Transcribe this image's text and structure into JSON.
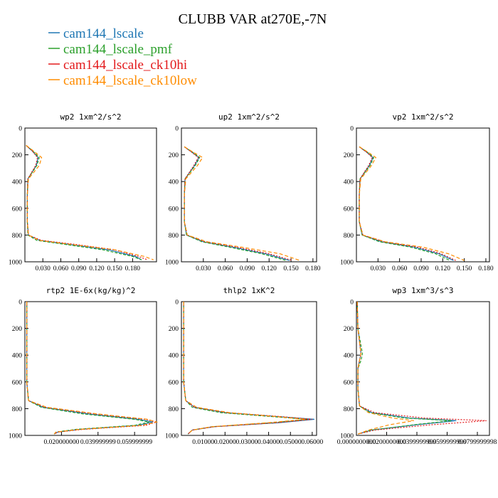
{
  "title": "CLUBB VAR at270E,-7N",
  "legend": [
    {
      "name": "cam144_lscale",
      "color": "#1f77b4"
    },
    {
      "name": "cam144_lscale_pmf",
      "color": "#2ca02c"
    },
    {
      "name": "cam144_lscale_ck10hi",
      "color": "#e31a1c"
    },
    {
      "name": "cam144_lscale_ck10low",
      "color": "#ff8c00"
    }
  ],
  "chart_data": [
    {
      "type": "line",
      "title": "wp2 1xm^2/s^2",
      "xlim": [
        0,
        0.22
      ],
      "ylim": [
        1000,
        0
      ],
      "y_inverted": true,
      "xticks": [
        0.03,
        0.06,
        0.09,
        0.12,
        0.15,
        0.18
      ],
      "xtick_labels": [
        "0.030",
        "0.060",
        "0.090",
        "0.120",
        "0.150",
        "0.180"
      ],
      "yticks": [
        0,
        200,
        400,
        600,
        800,
        1000
      ],
      "ytick_labels": [
        "0",
        "200",
        "400",
        "600",
        "800",
        "1000"
      ],
      "series": [
        {
          "name": "cam144_lscale",
          "x": [
            0.002,
            0.012,
            0.022,
            0.019,
            0.005,
            0.004,
            0.004,
            0.006,
            0.025,
            0.075,
            0.14,
            0.185,
            0.195
          ],
          "y": [
            130,
            170,
            220,
            280,
            380,
            500,
            700,
            800,
            840,
            870,
            910,
            960,
            985
          ]
        },
        {
          "name": "cam144_lscale_pmf",
          "x": [
            0.002,
            0.013,
            0.024,
            0.02,
            0.005,
            0.004,
            0.004,
            0.005,
            0.02,
            0.068,
            0.13,
            0.18,
            0.195
          ],
          "y": [
            130,
            170,
            220,
            280,
            380,
            500,
            700,
            800,
            840,
            870,
            910,
            960,
            985
          ]
        },
        {
          "name": "cam144_lscale_ck10hi",
          "x": [
            0.002,
            0.012,
            0.021,
            0.018,
            0.005,
            0.004,
            0.004,
            0.006,
            0.028,
            0.085,
            0.15,
            0.19,
            0.205
          ],
          "y": [
            130,
            170,
            220,
            280,
            380,
            500,
            700,
            800,
            840,
            870,
            910,
            960,
            985
          ]
        },
        {
          "name": "cam144_lscale_ck10low",
          "x": [
            0.002,
            0.014,
            0.028,
            0.024,
            0.006,
            0.004,
            0.004,
            0.006,
            0.024,
            0.078,
            0.15,
            0.2,
            0.215
          ],
          "y": [
            130,
            170,
            220,
            280,
            380,
            500,
            700,
            800,
            840,
            870,
            910,
            960,
            985
          ]
        }
      ]
    },
    {
      "type": "line",
      "title": "up2 1xm^2/s^2",
      "xlim": [
        0,
        0.185
      ],
      "ylim": [
        1000,
        0
      ],
      "y_inverted": true,
      "xticks": [
        0.03,
        0.06,
        0.09,
        0.12,
        0.15,
        0.18
      ],
      "xtick_labels": [
        "0.030",
        "0.060",
        "0.090",
        "0.120",
        "0.150",
        "0.180"
      ],
      "yticks": [
        0,
        200,
        400,
        600,
        800,
        1000
      ],
      "ytick_labels": [
        "0",
        "200",
        "400",
        "600",
        "800",
        "1000"
      ],
      "series": [
        {
          "name": "cam144_lscale",
          "x": [
            0.004,
            0.014,
            0.024,
            0.018,
            0.005,
            0.004,
            0.004,
            0.007,
            0.03,
            0.07,
            0.115,
            0.148
          ],
          "y": [
            140,
            180,
            220,
            280,
            380,
            500,
            700,
            800,
            850,
            890,
            940,
            990
          ]
        },
        {
          "name": "cam144_lscale_pmf",
          "x": [
            0.004,
            0.015,
            0.025,
            0.019,
            0.005,
            0.004,
            0.004,
            0.007,
            0.028,
            0.065,
            0.11,
            0.143
          ],
          "y": [
            140,
            180,
            220,
            280,
            380,
            500,
            700,
            800,
            850,
            890,
            940,
            990
          ]
        },
        {
          "name": "cam144_lscale_ck10hi",
          "x": [
            0.004,
            0.014,
            0.023,
            0.017,
            0.005,
            0.004,
            0.004,
            0.008,
            0.032,
            0.075,
            0.12,
            0.152
          ],
          "y": [
            140,
            180,
            220,
            280,
            380,
            500,
            700,
            800,
            850,
            890,
            940,
            990
          ]
        },
        {
          "name": "cam144_lscale_ck10low",
          "x": [
            0.004,
            0.016,
            0.029,
            0.022,
            0.006,
            0.004,
            0.004,
            0.008,
            0.035,
            0.082,
            0.135,
            0.162
          ],
          "y": [
            140,
            180,
            220,
            280,
            380,
            500,
            700,
            800,
            850,
            890,
            940,
            990
          ]
        }
      ]
    },
    {
      "type": "line",
      "title": "vp2 1xm^2/s^2",
      "xlim": [
        0,
        0.185
      ],
      "ylim": [
        1000,
        0
      ],
      "y_inverted": true,
      "xticks": [
        0.03,
        0.06,
        0.09,
        0.12,
        0.15,
        0.18
      ],
      "xtick_labels": [
        "0.030",
        "0.060",
        "0.090",
        "0.120",
        "0.150",
        "0.180"
      ],
      "yticks": [
        0,
        200,
        400,
        600,
        800,
        1000
      ],
      "ytick_labels": [
        "0",
        "200",
        "400",
        "600",
        "800",
        "1000"
      ],
      "series": [
        {
          "name": "cam144_lscale",
          "x": [
            0.004,
            0.014,
            0.023,
            0.018,
            0.005,
            0.004,
            0.004,
            0.008,
            0.035,
            0.08,
            0.115,
            0.135
          ],
          "y": [
            140,
            180,
            220,
            280,
            380,
            500,
            700,
            800,
            850,
            890,
            940,
            990
          ]
        },
        {
          "name": "cam144_lscale_pmf",
          "x": [
            0.004,
            0.015,
            0.024,
            0.019,
            0.005,
            0.004,
            0.004,
            0.008,
            0.032,
            0.075,
            0.11,
            0.13
          ],
          "y": [
            140,
            180,
            220,
            280,
            380,
            500,
            700,
            800,
            850,
            890,
            940,
            990
          ]
        },
        {
          "name": "cam144_lscale_ck10hi",
          "x": [
            0.004,
            0.014,
            0.022,
            0.017,
            0.005,
            0.004,
            0.004,
            0.009,
            0.038,
            0.085,
            0.118,
            0.138
          ],
          "y": [
            140,
            180,
            220,
            280,
            380,
            500,
            700,
            800,
            850,
            890,
            940,
            990
          ]
        },
        {
          "name": "cam144_lscale_ck10low",
          "x": [
            0.004,
            0.016,
            0.027,
            0.021,
            0.006,
            0.004,
            0.004,
            0.009,
            0.04,
            0.092,
            0.128,
            0.15
          ],
          "y": [
            140,
            180,
            220,
            280,
            380,
            500,
            700,
            800,
            850,
            890,
            940,
            990
          ]
        }
      ]
    },
    {
      "type": "line",
      "title": "rtp2 1E-6x(kg/kg)^2",
      "xlim": [
        0,
        0.072
      ],
      "ylim": [
        1000,
        0
      ],
      "y_inverted": true,
      "xticks": [
        0.02,
        0.04,
        0.06
      ],
      "xtick_labels": [
        "0.020000000",
        "0.039999999",
        "0.059999999"
      ],
      "yticks": [
        0,
        200,
        400,
        600,
        800,
        1000
      ],
      "ytick_labels": [
        "0",
        "200",
        "400",
        "600",
        "800",
        "1000"
      ],
      "series": [
        {
          "name": "cam144_lscale",
          "x": [
            0.001,
            0.001,
            0.001,
            0.002,
            0.01,
            0.035,
            0.062,
            0.07,
            0.062,
            0.03,
            0.018,
            0.016
          ],
          "y": [
            0,
            300,
            600,
            740,
            790,
            840,
            880,
            900,
            925,
            955,
            975,
            990
          ]
        },
        {
          "name": "cam144_lscale_pmf",
          "x": [
            0.001,
            0.001,
            0.001,
            0.002,
            0.009,
            0.032,
            0.06,
            0.068,
            0.06,
            0.028,
            0.017,
            0.016
          ],
          "y": [
            0,
            300,
            600,
            740,
            790,
            840,
            880,
            900,
            925,
            955,
            975,
            990
          ]
        },
        {
          "name": "cam144_lscale_ck10hi",
          "x": [
            0.001,
            0.001,
            0.001,
            0.002,
            0.011,
            0.038,
            0.066,
            0.073,
            0.066,
            0.032,
            0.018,
            0.016
          ],
          "y": [
            0,
            300,
            600,
            740,
            790,
            840,
            880,
            900,
            925,
            955,
            975,
            990
          ]
        },
        {
          "name": "cam144_lscale_ck10low",
          "x": [
            0.001,
            0.001,
            0.001,
            0.002,
            0.012,
            0.04,
            0.067,
            0.072,
            0.064,
            0.03,
            0.017,
            0.016
          ],
          "y": [
            0,
            300,
            600,
            740,
            790,
            840,
            880,
            900,
            925,
            955,
            975,
            990
          ]
        }
      ]
    },
    {
      "type": "line",
      "title": "thlp2 1xK^2",
      "xlim": [
        0,
        0.062
      ],
      "ylim": [
        1000,
        0
      ],
      "y_inverted": true,
      "xticks": [
        0.01,
        0.02,
        0.03,
        0.04,
        0.05,
        0.06
      ],
      "xtick_labels": [
        "0.01000",
        "0.02000",
        "0.03000",
        "0.04000",
        "0.05000",
        "0.06000"
      ],
      "yticks": [
        0,
        200,
        400,
        600,
        800,
        1000
      ],
      "ytick_labels": [
        "0",
        "200",
        "400",
        "600",
        "800",
        "1000"
      ],
      "series": [
        {
          "name": "cam144_lscale",
          "x": [
            0.001,
            0.001,
            0.001,
            0.002,
            0.006,
            0.02,
            0.045,
            0.061,
            0.045,
            0.015,
            0.005,
            0.003
          ],
          "y": [
            0,
            300,
            600,
            740,
            790,
            830,
            860,
            880,
            905,
            935,
            960,
            990
          ]
        },
        {
          "name": "cam144_lscale_pmf",
          "x": [
            0.001,
            0.001,
            0.001,
            0.002,
            0.005,
            0.018,
            0.042,
            0.058,
            0.042,
            0.014,
            0.005,
            0.003
          ],
          "y": [
            0,
            300,
            600,
            740,
            790,
            830,
            860,
            880,
            905,
            935,
            960,
            990
          ]
        },
        {
          "name": "cam144_lscale_ck10hi",
          "x": [
            0.001,
            0.001,
            0.001,
            0.002,
            0.006,
            0.021,
            0.046,
            0.06,
            0.044,
            0.015,
            0.005,
            0.003
          ],
          "y": [
            0,
            300,
            600,
            740,
            790,
            830,
            860,
            880,
            905,
            935,
            960,
            990
          ]
        },
        {
          "name": "cam144_lscale_ck10low",
          "x": [
            0.001,
            0.001,
            0.001,
            0.002,
            0.007,
            0.022,
            0.044,
            0.057,
            0.04,
            0.014,
            0.005,
            0.003
          ],
          "y": [
            0,
            300,
            600,
            740,
            790,
            830,
            860,
            880,
            905,
            935,
            960,
            990
          ]
        }
      ]
    },
    {
      "type": "line",
      "title": "wp3 1xm^3/s^3",
      "xlim": [
        0,
        0.088
      ],
      "ylim": [
        1000,
        0
      ],
      "y_inverted": true,
      "xticks": [
        0,
        0.02,
        0.04,
        0.06,
        0.08
      ],
      "xtick_labels": [
        "0.0000000000",
        "0.0200000000",
        "0.0399999999",
        "0.0599999999",
        "0.0799999998"
      ],
      "yticks": [
        0,
        200,
        400,
        600,
        800,
        1000
      ],
      "ytick_labels": [
        "0",
        "200",
        "400",
        "600",
        "800",
        "1000"
      ],
      "series": [
        {
          "name": "cam144_lscale",
          "x": [
            0.0005,
            0.001,
            0.003,
            0.002,
            0.001,
            0.001,
            0.002,
            0.01,
            0.035,
            0.066,
            0.04,
            0.01,
            0.001
          ],
          "y": [
            0,
            200,
            390,
            440,
            500,
            650,
            780,
            830,
            870,
            890,
            920,
            960,
            990
          ]
        },
        {
          "name": "cam144_lscale_pmf",
          "x": [
            0.0005,
            0.001,
            0.004,
            0.003,
            0.001,
            0.001,
            0.002,
            0.009,
            0.032,
            0.063,
            0.038,
            0.01,
            0.001
          ],
          "y": [
            0,
            200,
            390,
            440,
            500,
            650,
            780,
            830,
            870,
            890,
            920,
            960,
            990
          ]
        },
        {
          "name": "cam144_lscale_ck10hi",
          "x": [
            0.0005,
            0.001,
            0.003,
            0.002,
            0.001,
            0.001,
            0.002,
            0.012,
            0.045,
            0.086,
            0.05,
            0.012,
            0.001
          ],
          "y": [
            0,
            200,
            390,
            440,
            500,
            650,
            780,
            830,
            870,
            890,
            920,
            960,
            990
          ]
        },
        {
          "name": "cam144_lscale_ck10low",
          "x": [
            0.0005,
            0.001,
            0.003,
            0.002,
            0.001,
            0.001,
            0.002,
            0.008,
            0.024,
            0.038,
            0.022,
            0.008,
            0.001
          ],
          "y": [
            0,
            200,
            390,
            440,
            500,
            650,
            780,
            830,
            870,
            890,
            920,
            960,
            990
          ]
        }
      ]
    }
  ]
}
